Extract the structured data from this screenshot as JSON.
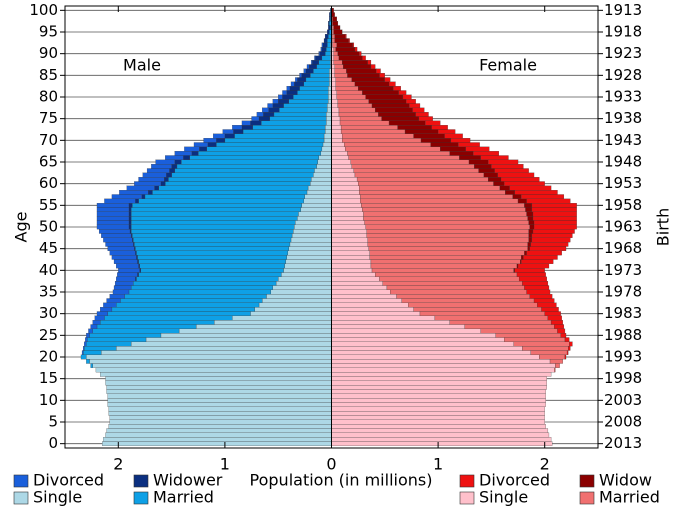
{
  "chart_data": {
    "type": "pyramid",
    "y_label": "Age",
    "y2_label": "Birth",
    "x_label": "Population (in millions)",
    "xlim": [
      0,
      2.5
    ],
    "xticks": [
      0,
      1,
      2
    ],
    "ylim": [
      -1,
      101
    ],
    "yticks": [
      0,
      5,
      10,
      15,
      20,
      25,
      30,
      35,
      40,
      45,
      50,
      55,
      60,
      65,
      70,
      75,
      80,
      85,
      90,
      95,
      100
    ],
    "y2lim": [
      2014,
      1912
    ],
    "y2ticks": [
      2013,
      2008,
      2003,
      1998,
      1993,
      1988,
      1983,
      1978,
      1973,
      1968,
      1963,
      1958,
      1953,
      1948,
      1943,
      1938,
      1933,
      1928,
      1923,
      1918,
      1913
    ],
    "grid": true,
    "y": [
      0,
      1,
      2,
      3,
      4,
      5,
      6,
      7,
      8,
      9,
      10,
      11,
      12,
      13,
      14,
      15,
      16,
      17,
      18,
      19,
      20,
      21,
      22,
      23,
      24,
      25,
      26,
      27,
      28,
      29,
      30,
      31,
      32,
      33,
      34,
      35,
      36,
      37,
      38,
      39,
      40,
      41,
      42,
      43,
      44,
      45,
      46,
      47,
      48,
      49,
      50,
      51,
      52,
      53,
      54,
      55,
      56,
      57,
      58,
      59,
      60,
      61,
      62,
      63,
      64,
      65,
      66,
      67,
      68,
      69,
      70,
      71,
      72,
      73,
      74,
      75,
      76,
      77,
      78,
      79,
      80,
      81,
      82,
      83,
      84,
      85,
      86,
      87,
      88,
      89,
      90,
      91,
      92,
      93,
      94,
      95,
      96,
      97,
      98,
      99,
      100
    ],
    "male": {
      "label": "Male",
      "series": [
        {
          "name": "Single",
          "color": "#add8e6",
          "values": [
            2.15,
            2.14,
            2.12,
            2.11,
            2.09,
            2.08,
            2.08,
            2.09,
            2.09,
            2.1,
            2.1,
            2.1,
            2.11,
            2.11,
            2.12,
            2.12,
            2.17,
            2.21,
            2.24,
            2.27,
            2.3,
            2.16,
            2.02,
            1.88,
            1.74,
            1.6,
            1.43,
            1.27,
            1.1,
            0.93,
            0.76,
            0.72,
            0.68,
            0.65,
            0.61,
            0.57,
            0.55,
            0.52,
            0.5,
            0.47,
            0.45,
            0.44,
            0.43,
            0.42,
            0.41,
            0.4,
            0.39,
            0.38,
            0.37,
            0.36,
            0.35,
            0.34,
            0.32,
            0.31,
            0.29,
            0.28,
            0.26,
            0.25,
            0.23,
            0.22,
            0.2,
            0.19,
            0.17,
            0.16,
            0.14,
            0.13,
            0.12,
            0.1,
            0.09,
            0.08,
            0.07,
            0.07,
            0.06,
            0.06,
            0.05,
            0.05,
            0.05,
            0.04,
            0.04,
            0.03,
            0.03,
            0.03,
            0.03,
            0.02,
            0.02,
            0.02,
            0.02,
            0.01,
            0.01,
            0.01,
            0.01,
            0.01,
            0.01,
            0,
            0,
            0,
            0,
            0,
            0,
            0,
            0
          ]
        },
        {
          "name": "Married",
          "color": "#0ea0e6",
          "values": [
            0,
            0,
            0,
            0,
            0,
            0,
            0,
            0,
            0,
            0,
            0,
            0,
            0,
            0,
            0,
            0,
            0,
            0,
            0.02,
            0.03,
            0.05,
            0.17,
            0.3,
            0.42,
            0.55,
            0.67,
            0.81,
            0.93,
            1.07,
            1.2,
            1.34,
            1.34,
            1.34,
            1.33,
            1.33,
            1.33,
            1.33,
            1.34,
            1.33,
            1.34,
            1.34,
            1.36,
            1.38,
            1.4,
            1.42,
            1.44,
            1.46,
            1.48,
            1.5,
            1.52,
            1.53,
            1.54,
            1.56,
            1.57,
            1.59,
            1.59,
            1.55,
            1.5,
            1.45,
            1.4,
            1.36,
            1.34,
            1.33,
            1.31,
            1.31,
            1.28,
            1.21,
            1.15,
            1.08,
            1.0,
            0.93,
            0.84,
            0.77,
            0.68,
            0.61,
            0.53,
            0.49,
            0.45,
            0.41,
            0.37,
            0.33,
            0.29,
            0.27,
            0.24,
            0.22,
            0.18,
            0.15,
            0.13,
            0.11,
            0.08,
            0.05,
            0.04,
            0.03,
            0.04,
            0.03,
            0.02,
            0.01,
            0.02,
            0.01,
            0.01,
            0
          ]
        },
        {
          "name": "Widower",
          "color": "#0b2f80",
          "values": [
            0,
            0,
            0,
            0,
            0,
            0,
            0,
            0,
            0,
            0,
            0,
            0,
            0,
            0,
            0,
            0,
            0,
            0,
            0,
            0,
            0,
            0,
            0,
            0,
            0,
            0,
            0,
            0,
            0,
            0,
            0,
            0,
            0,
            0,
            0,
            0,
            0,
            0,
            0.01,
            0.01,
            0.01,
            0.01,
            0.01,
            0.01,
            0.01,
            0.01,
            0.01,
            0.01,
            0.01,
            0.01,
            0.02,
            0.02,
            0.02,
            0.02,
            0.02,
            0.03,
            0.03,
            0.03,
            0.04,
            0.04,
            0.04,
            0.04,
            0.05,
            0.05,
            0.05,
            0.06,
            0.06,
            0.06,
            0.07,
            0.08,
            0.08,
            0.09,
            0.09,
            0.1,
            0.1,
            0.1,
            0.1,
            0.1,
            0.1,
            0.1,
            0.1,
            0.1,
            0.09,
            0.09,
            0.08,
            0.08,
            0.07,
            0.07,
            0.06,
            0.06,
            0.05,
            0.04,
            0.04,
            0.03,
            0.03,
            0.02,
            0.02,
            0.01,
            0.01,
            0.01,
            0.01
          ]
        },
        {
          "name": "Divorced",
          "color": "#1a5fdb",
          "values": [
            0,
            0,
            0,
            0,
            0,
            0,
            0,
            0,
            0,
            0,
            0,
            0,
            0,
            0,
            0,
            0,
            0,
            0,
            0,
            0,
            0,
            0.01,
            0.01,
            0.02,
            0.02,
            0.03,
            0.04,
            0.06,
            0.07,
            0.09,
            0.1,
            0.11,
            0.12,
            0.13,
            0.14,
            0.15,
            0.16,
            0.17,
            0.18,
            0.19,
            0.2,
            0.21,
            0.22,
            0.23,
            0.24,
            0.25,
            0.26,
            0.27,
            0.28,
            0.29,
            0.3,
            0.3,
            0.3,
            0.3,
            0.3,
            0.3,
            0.29,
            0.28,
            0.27,
            0.26,
            0.25,
            0.24,
            0.22,
            0.21,
            0.19,
            0.18,
            0.17,
            0.16,
            0.14,
            0.13,
            0.12,
            0.11,
            0.1,
            0.09,
            0.08,
            0.07,
            0.06,
            0.06,
            0.05,
            0.05,
            0.04,
            0.04,
            0.03,
            0.03,
            0.02,
            0.02,
            0.02,
            0.02,
            0.01,
            0.01,
            0.01,
            0.01,
            0.01,
            0,
            0,
            0,
            0,
            0,
            0,
            0,
            0
          ]
        }
      ]
    },
    "female": {
      "label": "Female",
      "series": [
        {
          "name": "Single",
          "color": "#ffc0cb",
          "values": [
            2.07,
            2.06,
            2.04,
            2.03,
            2.01,
            2.0,
            2.0,
            2.0,
            2.0,
            2.01,
            2.01,
            2.01,
            2.01,
            2.02,
            2.02,
            2.02,
            2.06,
            2.09,
            2.1,
            2.05,
            1.95,
            1.87,
            1.79,
            1.71,
            1.62,
            1.54,
            1.4,
            1.25,
            1.11,
            0.97,
            0.83,
            0.77,
            0.72,
            0.66,
            0.61,
            0.55,
            0.52,
            0.48,
            0.45,
            0.41,
            0.38,
            0.37,
            0.37,
            0.36,
            0.36,
            0.35,
            0.34,
            0.34,
            0.33,
            0.33,
            0.32,
            0.31,
            0.3,
            0.3,
            0.29,
            0.28,
            0.27,
            0.27,
            0.26,
            0.26,
            0.25,
            0.24,
            0.22,
            0.21,
            0.19,
            0.18,
            0.16,
            0.15,
            0.13,
            0.12,
            0.1,
            0.1,
            0.09,
            0.09,
            0.08,
            0.08,
            0.07,
            0.07,
            0.06,
            0.06,
            0.05,
            0.05,
            0.04,
            0.04,
            0.04,
            0.03,
            0.03,
            0.03,
            0.02,
            0.02,
            0.02,
            0.02,
            0.01,
            0.01,
            0.01,
            0.01,
            0.01,
            0,
            0,
            0,
            0
          ]
        },
        {
          "name": "Married",
          "color": "#f07070",
          "values": [
            0,
            0,
            0,
            0,
            0,
            0,
            0,
            0,
            0,
            0,
            0,
            0,
            0,
            0,
            0,
            0,
            0,
            0.01,
            0.04,
            0.12,
            0.24,
            0.34,
            0.43,
            0.52,
            0.57,
            0.61,
            0.72,
            0.84,
            0.95,
            1.06,
            1.17,
            1.2,
            1.21,
            1.24,
            1.25,
            1.28,
            1.29,
            1.31,
            1.31,
            1.33,
            1.33,
            1.37,
            1.4,
            1.42,
            1.45,
            1.49,
            1.5,
            1.51,
            1.52,
            1.52,
            1.54,
            1.54,
            1.54,
            1.53,
            1.53,
            1.53,
            1.48,
            1.43,
            1.37,
            1.32,
            1.27,
            1.23,
            1.21,
            1.17,
            1.15,
            1.11,
            1.04,
            0.96,
            0.89,
            0.81,
            0.74,
            0.67,
            0.6,
            0.53,
            0.46,
            0.39,
            0.37,
            0.34,
            0.32,
            0.29,
            0.27,
            0.24,
            0.21,
            0.18,
            0.15,
            0.12,
            0.11,
            0.08,
            0.08,
            0.05,
            0.04,
            0.02,
            0.04,
            0.02,
            0.02,
            0.01,
            0.01,
            0.01,
            0.01,
            0,
            0
          ]
        },
        {
          "name": "Widow",
          "color": "#8b0000",
          "values": [
            0,
            0,
            0,
            0,
            0,
            0,
            0,
            0,
            0,
            0,
            0,
            0,
            0,
            0,
            0,
            0,
            0,
            0,
            0,
            0,
            0,
            0,
            0,
            0,
            0,
            0,
            0,
            0,
            0,
            0,
            0,
            0,
            0,
            0,
            0,
            0,
            0,
            0,
            0,
            0,
            0.01,
            0.01,
            0.01,
            0.02,
            0.02,
            0.02,
            0.03,
            0.03,
            0.03,
            0.04,
            0.04,
            0.05,
            0.05,
            0.06,
            0.06,
            0.07,
            0.08,
            0.08,
            0.09,
            0.09,
            0.1,
            0.12,
            0.13,
            0.15,
            0.16,
            0.18,
            0.2,
            0.22,
            0.24,
            0.26,
            0.28,
            0.29,
            0.31,
            0.32,
            0.34,
            0.35,
            0.35,
            0.35,
            0.35,
            0.35,
            0.35,
            0.34,
            0.33,
            0.32,
            0.31,
            0.3,
            0.28,
            0.26,
            0.24,
            0.22,
            0.2,
            0.18,
            0.15,
            0.13,
            0.1,
            0.08,
            0.06,
            0.05,
            0.04,
            0.03,
            0.02
          ]
        },
        {
          "name": "Divorced",
          "color": "#ee1111",
          "values": [
            0,
            0,
            0,
            0,
            0,
            0,
            0,
            0,
            0,
            0,
            0,
            0,
            0,
            0,
            0,
            0,
            0,
            0,
            0,
            0,
            0.01,
            0.01,
            0.02,
            0.03,
            0.04,
            0.05,
            0.07,
            0.09,
            0.11,
            0.13,
            0.15,
            0.16,
            0.18,
            0.19,
            0.21,
            0.22,
            0.23,
            0.24,
            0.26,
            0.27,
            0.28,
            0.29,
            0.3,
            0.32,
            0.33,
            0.34,
            0.35,
            0.36,
            0.38,
            0.39,
            0.4,
            0.4,
            0.41,
            0.41,
            0.42,
            0.42,
            0.41,
            0.4,
            0.4,
            0.39,
            0.38,
            0.36,
            0.34,
            0.32,
            0.3,
            0.28,
            0.26,
            0.24,
            0.22,
            0.2,
            0.18,
            0.17,
            0.16,
            0.15,
            0.14,
            0.13,
            0.12,
            0.11,
            0.1,
            0.09,
            0.08,
            0.07,
            0.07,
            0.06,
            0.05,
            0.05,
            0.04,
            0.04,
            0.03,
            0.03,
            0.02,
            0.02,
            0.01,
            0.01,
            0.01,
            0,
            0,
            0,
            0,
            0,
            0
          ]
        }
      ]
    }
  }
}
